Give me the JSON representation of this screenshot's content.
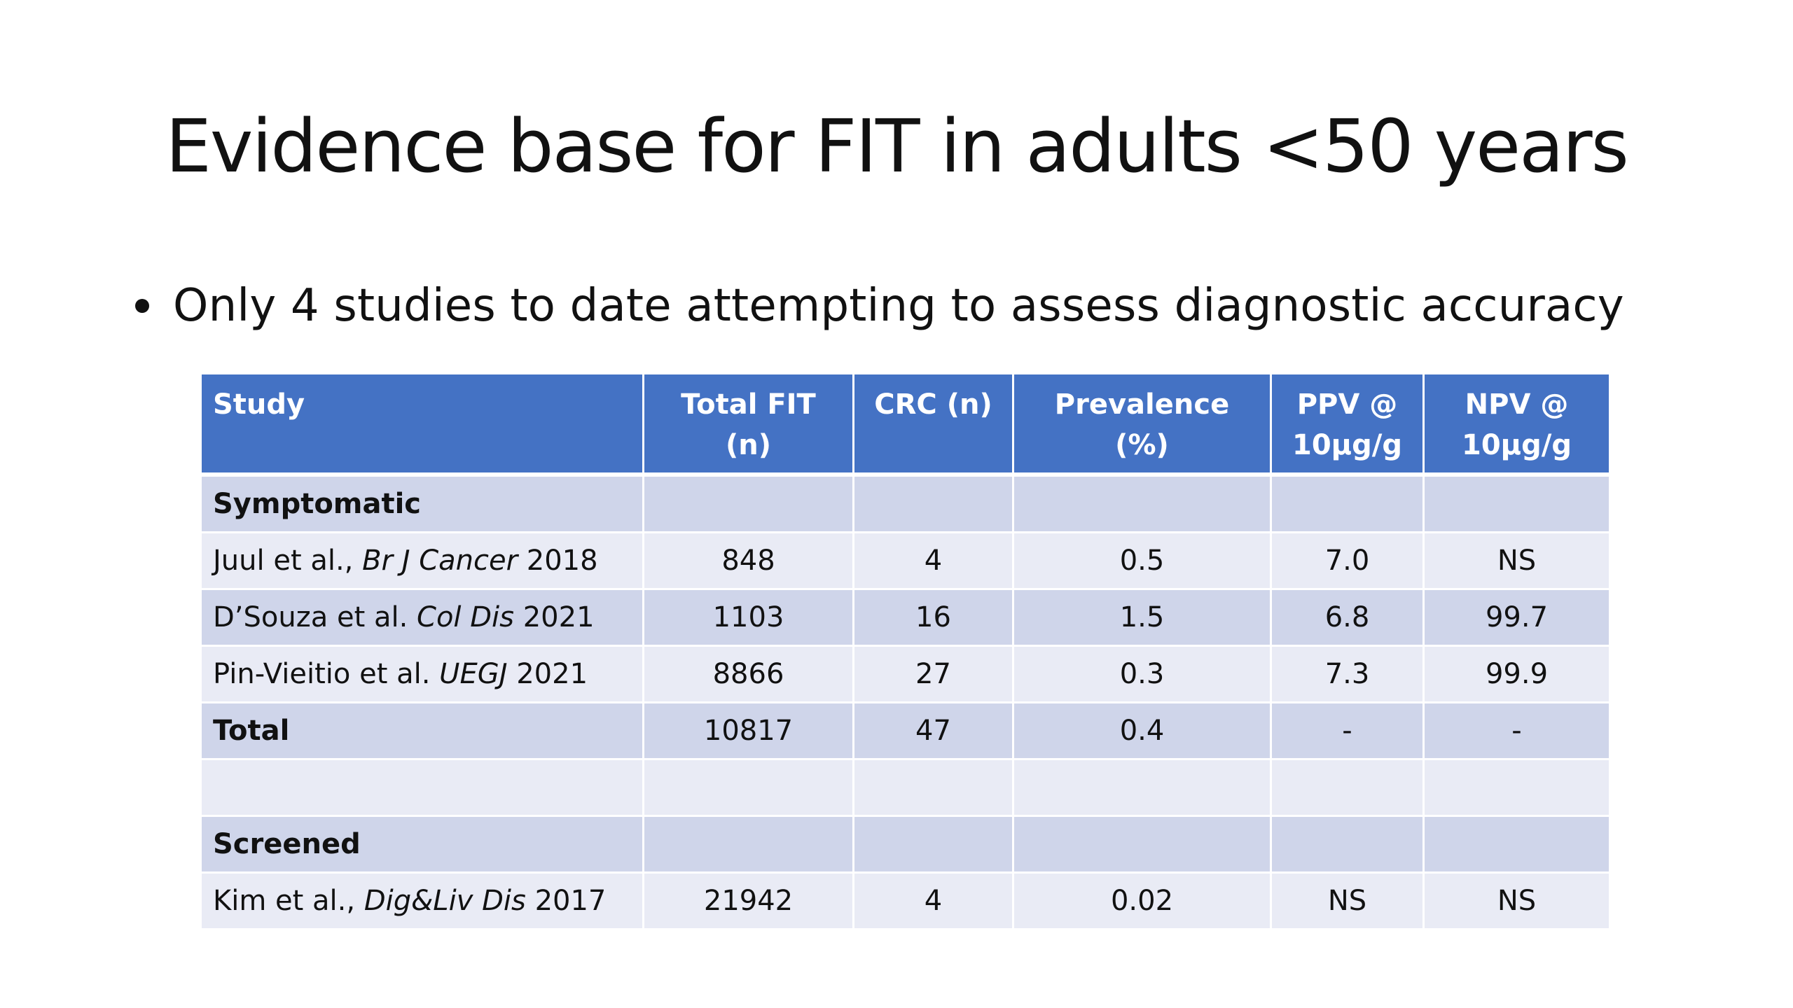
{
  "slide": {
    "title": "Evidence base for FIT in adults <50 years",
    "bullet": "Only 4 studies to date attempting to assess diagnostic accuracy"
  },
  "table": {
    "headers": {
      "study": "Study",
      "total_fit": "Total FIT (n)",
      "crc": "CRC (n)",
      "prevalence": "Prevalence (%)",
      "ppv_line1": "PPV @",
      "ppv_line2": "10µg/g",
      "npv_line1": "NPV @",
      "npv_line2": "10µg/g"
    },
    "sections": {
      "symptomatic": "Symptomatic",
      "screened": "Screened"
    },
    "rows": [
      {
        "author": "Juul et al., ",
        "journal": "Br J Cancer",
        "year": " 2018",
        "total_fit": "848",
        "crc": "4",
        "prevalence": "0.5",
        "ppv": "7.0",
        "npv": "NS"
      },
      {
        "author": "D’Souza et al. ",
        "journal": "Col Dis",
        "year": " 2021",
        "total_fit": "1103",
        "crc": "16",
        "prevalence": "1.5",
        "ppv": "6.8",
        "npv": "99.7"
      },
      {
        "author": "Pin-Vieitio et al. ",
        "journal": "UEGJ",
        "year": " 2021",
        "total_fit": "8866",
        "crc": "27",
        "prevalence": "0.3",
        "ppv": "7.3",
        "npv": "99.9"
      },
      {
        "author": "Kim et al., ",
        "journal": "Dig&Liv Dis",
        "year": " 2017",
        "total_fit": "21942",
        "crc": "4",
        "prevalence": "0.02",
        "ppv": "NS",
        "npv": "NS"
      }
    ],
    "total": {
      "label": "Total",
      "total_fit": "10817",
      "crc": "47",
      "prevalence": "0.4",
      "ppv": "-",
      "npv": "-"
    }
  },
  "colors": {
    "header_bg": "#4472c4",
    "row_dark": "#cfd5ea",
    "row_light": "#e9ebf5"
  }
}
